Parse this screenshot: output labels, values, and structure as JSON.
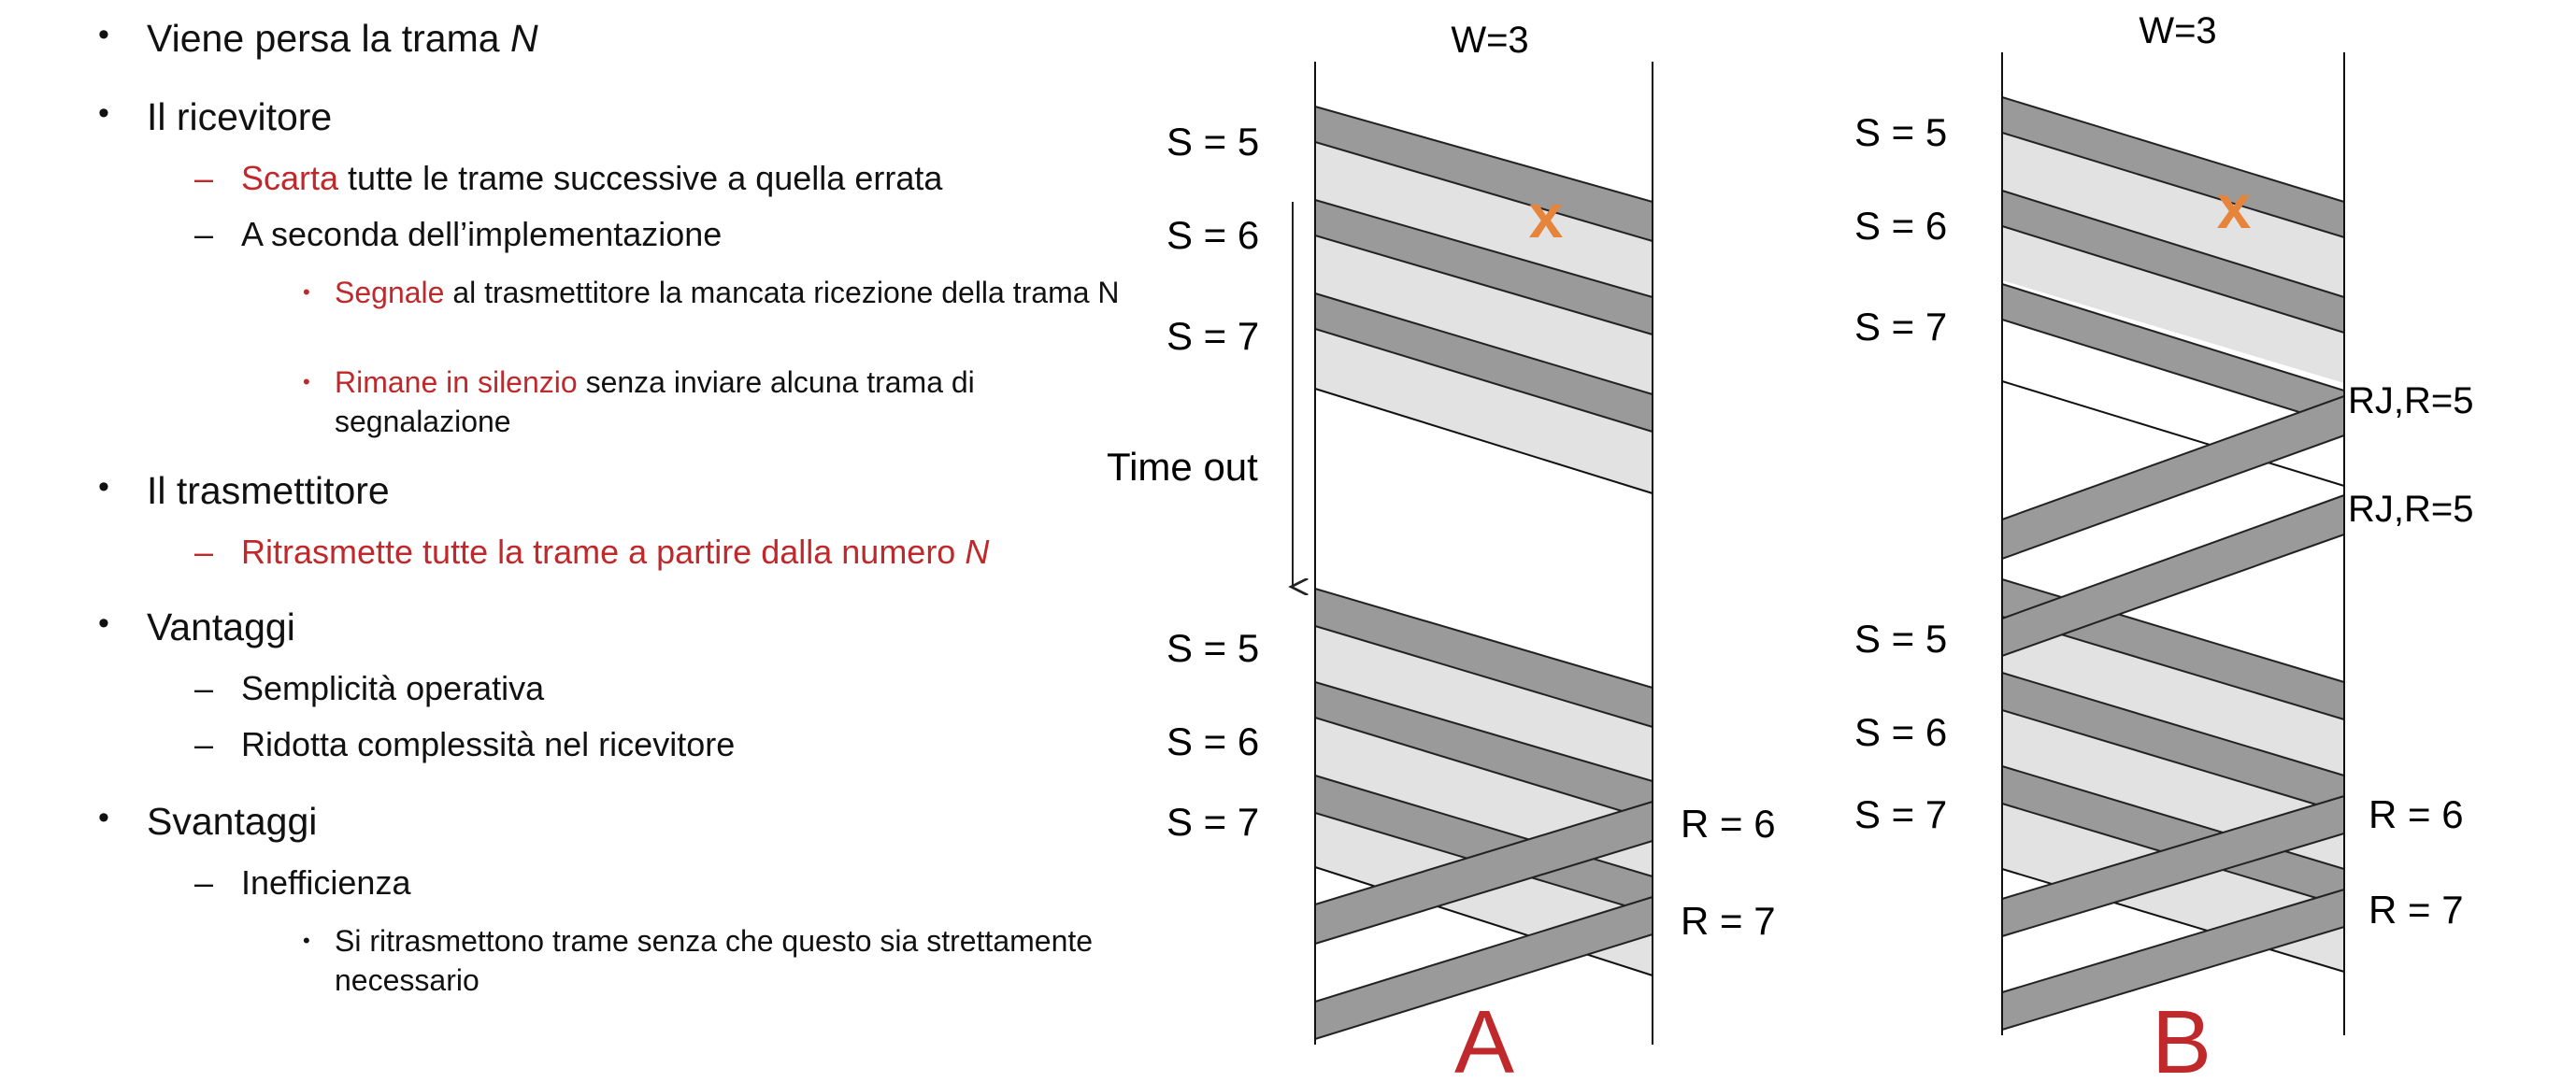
{
  "bullets": {
    "b1": {
      "text": "Viene persa la trama ",
      "em": "N"
    },
    "b2": {
      "text": "Il ricevitore"
    },
    "b2_1": {
      "red": "Scarta",
      "rest": " tutte le trame successive a quella errata"
    },
    "b2_2": {
      "text": "A seconda dell’implementazione"
    },
    "b2_2_1": {
      "red": "Segnale",
      "rest": " al trasmettitore la mancata ricezione della trama N"
    },
    "b2_2_2": {
      "red": "Rimane in silenzio",
      "rest": " senza inviare alcuna trama di segnalazione"
    },
    "b3": {
      "text": "Il trasmettitore"
    },
    "b3_1": {
      "red": "Ritrasmette tutte la trame a partire dalla numero ",
      "em": "N"
    },
    "b4": {
      "text": "Vantaggi"
    },
    "b4_1": {
      "text": "Semplicità operativa"
    },
    "b4_2": {
      "text": "Ridotta complessità nel ricevitore"
    },
    "b5": {
      "text": "Svantaggi"
    },
    "b5_1": {
      "text": "Inefficienza"
    },
    "b5_1_1": {
      "text": "Si ritrasmettono trame senza che questo sia strettamente necessario"
    }
  },
  "diagram_a": {
    "window": "W=3",
    "s5": "S = 5",
    "s6": "S = 6",
    "s7": "S = 7",
    "timeout": "Time out",
    "s5b": "S = 5",
    "s6b": "S = 6",
    "s7b": "S = 7",
    "r6": "R = 6",
    "r7": "R = 7",
    "lost_mark": "x",
    "caption": "A"
  },
  "diagram_b": {
    "window": "W=3",
    "s5": "S = 5",
    "s6": "S = 6",
    "s7": "S = 7",
    "rj1": "RJ,R=5",
    "rj2": "RJ,R=5",
    "s5b": "S = 5",
    "s6b": "S = 6",
    "s7b": "S = 7",
    "r6": "R = 6",
    "r7": "R = 7",
    "lost_mark": "x",
    "caption": "B"
  },
  "colors": {
    "frame": "#9a9a9a",
    "band": "#e2e2e2",
    "accent": "#c0292b",
    "loss": "#e5843a"
  }
}
